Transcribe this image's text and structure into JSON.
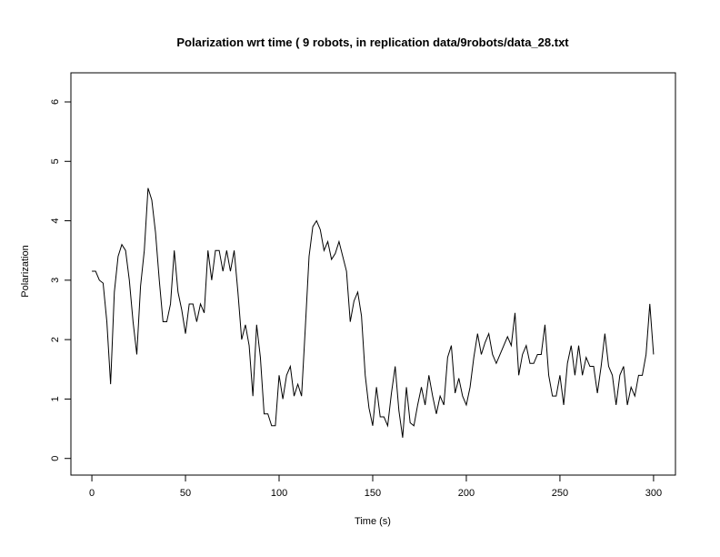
{
  "chart_data": {
    "type": "line",
    "title": "Polarization wrt time ( 9 robots, in replication  data/9robots/data_28.txt",
    "x_label": "Time (s)",
    "y_label": "Polarization",
    "x": [
      0,
      2,
      4,
      6,
      8,
      10,
      12,
      14,
      16,
      18,
      20,
      22,
      24,
      26,
      28,
      30,
      32,
      34,
      36,
      38,
      40,
      42,
      44,
      46,
      48,
      50,
      52,
      54,
      56,
      58,
      60,
      62,
      64,
      66,
      68,
      70,
      72,
      74,
      76,
      78,
      80,
      82,
      84,
      86,
      88,
      90,
      92,
      94,
      96,
      98,
      100,
      102,
      104,
      106,
      108,
      110,
      112,
      114,
      116,
      118,
      120,
      122,
      124,
      126,
      128,
      130,
      132,
      134,
      136,
      138,
      140,
      142,
      144,
      146,
      148,
      150,
      152,
      154,
      156,
      158,
      160,
      162,
      164,
      166,
      168,
      170,
      172,
      174,
      176,
      178,
      180,
      182,
      184,
      186,
      188,
      190,
      192,
      194,
      196,
      198,
      200,
      202,
      204,
      206,
      208,
      210,
      212,
      214,
      216,
      218,
      220,
      222,
      224,
      226,
      228,
      230,
      232,
      234,
      236,
      238,
      240,
      242,
      244,
      246,
      248,
      250,
      252,
      254,
      256,
      258,
      260,
      262,
      264,
      266,
      268,
      270,
      272,
      274,
      276,
      278,
      280,
      282,
      284,
      286,
      288,
      290,
      292,
      294,
      296,
      298,
      300
    ],
    "series": [
      {
        "name": "Polarization",
        "color": "#000000",
        "values": [
          3.15,
          3.15,
          3.0,
          2.95,
          2.3,
          1.25,
          2.8,
          3.4,
          3.6,
          3.5,
          3.0,
          2.3,
          1.75,
          2.9,
          3.5,
          4.55,
          4.35,
          3.8,
          3.0,
          2.3,
          2.3,
          2.6,
          3.5,
          2.8,
          2.5,
          2.1,
          2.6,
          2.6,
          2.3,
          2.6,
          2.45,
          3.5,
          3.0,
          3.5,
          3.5,
          3.15,
          3.5,
          3.15,
          3.5,
          2.8,
          2.0,
          2.25,
          1.9,
          1.05,
          2.25,
          1.7,
          0.75,
          0.75,
          0.55,
          0.55,
          1.4,
          1.0,
          1.4,
          1.55,
          1.05,
          1.25,
          1.05,
          2.2,
          3.4,
          3.9,
          4.0,
          3.85,
          3.5,
          3.65,
          3.35,
          3.45,
          3.65,
          3.4,
          3.15,
          2.3,
          2.65,
          2.8,
          2.4,
          1.4,
          0.85,
          0.55,
          1.2,
          0.7,
          0.7,
          0.55,
          1.1,
          1.55,
          0.8,
          0.35,
          1.2,
          0.6,
          0.55,
          0.9,
          1.2,
          0.9,
          1.4,
          1.05,
          0.75,
          1.05,
          0.9,
          1.7,
          1.9,
          1.1,
          1.35,
          1.05,
          0.9,
          1.2,
          1.7,
          2.1,
          1.75,
          1.95,
          2.1,
          1.75,
          1.6,
          1.75,
          1.9,
          2.05,
          1.9,
          2.45,
          1.4,
          1.75,
          1.9,
          1.6,
          1.6,
          1.75,
          1.75,
          2.25,
          1.4,
          1.05,
          1.05,
          1.4,
          0.9,
          1.6,
          1.9,
          1.4,
          1.9,
          1.4,
          1.7,
          1.55,
          1.55,
          1.1,
          1.55,
          2.1,
          1.55,
          1.4,
          0.9,
          1.4,
          1.55,
          0.9,
          1.2,
          1.05,
          1.4,
          1.4,
          1.75,
          2.6,
          1.75
        ]
      }
    ],
    "xlim": [
      -11.2,
      311.7
    ],
    "xticks": [
      0,
      50,
      100,
      150,
      200,
      250,
      300
    ],
    "ylim": [
      -0.28,
      6.49
    ],
    "yticks": [
      0,
      1,
      2,
      3,
      4,
      5,
      6
    ]
  }
}
